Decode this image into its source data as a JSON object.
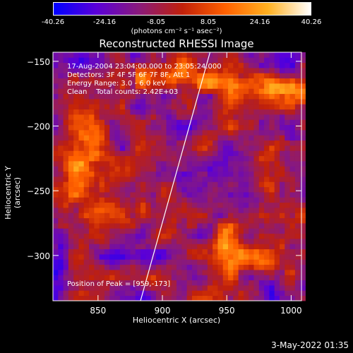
{
  "colorbar": {
    "ticks": [
      "-40.26",
      "-24.16",
      "-8.05",
      "8.05",
      "24.16",
      "40.26"
    ],
    "units": "(photons cm⁻² s⁻¹ asec⁻²)",
    "colormap": [
      "#0000ff",
      "#5a00d8",
      "#8a1a7a",
      "#c0200a",
      "#ff6000",
      "#ffb020",
      "#ffffff"
    ]
  },
  "chart_data": {
    "type": "heatmap",
    "title": "Reconstructed RHESSI Image",
    "xlabel": "Heliocentric X (arcsec)",
    "ylabel": "Heliocentric Y (arcsec)",
    "xlim": [
      815,
      1008
    ],
    "ylim": [
      -335,
      -143
    ],
    "x_ticks": [
      850,
      900,
      950,
      1000
    ],
    "y_ticks": [
      -150,
      -200,
      -250,
      -300
    ],
    "zlim": [
      -40.26,
      40.26
    ],
    "limb_line": [
      [
        883,
        -335
      ],
      [
        937,
        -143
      ]
    ],
    "peak": [
      959,
      -173
    ],
    "annotations": [
      "17-Aug-2004 23:04:00.000 to 23:05:24.000",
      "Detectors: 3F 4F 5F 6F 7F 8F, Att 1",
      "Energy Range: 3.0 - 6.0 keV",
      "Clean    Total counts: 2.42E+03"
    ],
    "peak_label": "Position of Peak = [959,-173]"
  },
  "footer": {
    "datestamp": "3-May-2022 01:35"
  }
}
